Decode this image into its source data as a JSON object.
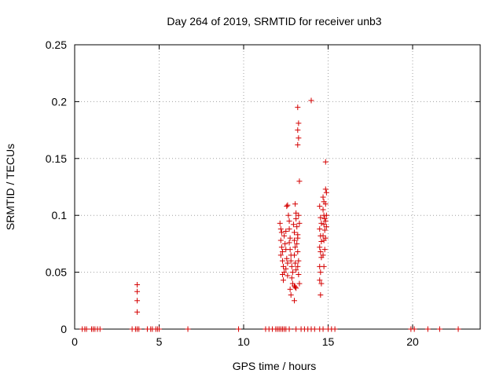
{
  "chart_data": {
    "type": "scatter",
    "title": "Day 264 of 2019, SRMTID for receiver unb3",
    "xlabel": "GPS time / hours",
    "ylabel": "SRMTID / TECUs",
    "xlim": [
      0,
      24
    ],
    "ylim": [
      0,
      0.25
    ],
    "xticks": [
      0,
      5,
      10,
      15,
      20
    ],
    "xtick_labels": [
      "0",
      "5",
      "10",
      "15",
      "20"
    ],
    "yticks": [
      0,
      0.05,
      0.1,
      0.15,
      0.2,
      0.25
    ],
    "ytick_labels": [
      "0",
      "0.05",
      "0.1",
      "0.15",
      "0.2",
      "0.25"
    ],
    "grid": true,
    "marker": "+",
    "color": "#d40000",
    "series": [
      {
        "name": "SRMTID",
        "points": [
          [
            0.45,
            0
          ],
          [
            0.6,
            0
          ],
          [
            0.7,
            0
          ],
          [
            1.0,
            0
          ],
          [
            1.1,
            0
          ],
          [
            1.2,
            0
          ],
          [
            1.35,
            0
          ],
          [
            1.5,
            0
          ],
          [
            3.4,
            0
          ],
          [
            3.6,
            0
          ],
          [
            3.7,
            0
          ],
          [
            3.8,
            0
          ],
          [
            4.3,
            0
          ],
          [
            4.5,
            0
          ],
          [
            4.6,
            0
          ],
          [
            4.8,
            0
          ],
          [
            4.9,
            0
          ],
          [
            5.0,
            0
          ],
          [
            6.7,
            0
          ],
          [
            9.7,
            0
          ],
          [
            11.3,
            0
          ],
          [
            11.5,
            0
          ],
          [
            11.7,
            0
          ],
          [
            11.9,
            0
          ],
          [
            12.0,
            0
          ],
          [
            12.1,
            0
          ],
          [
            12.2,
            0
          ],
          [
            12.3,
            0
          ],
          [
            12.4,
            0
          ],
          [
            12.5,
            0
          ],
          [
            12.7,
            0
          ],
          [
            13.1,
            0
          ],
          [
            13.4,
            0
          ],
          [
            13.6,
            0
          ],
          [
            13.8,
            0
          ],
          [
            14.0,
            0
          ],
          [
            14.2,
            0
          ],
          [
            14.5,
            0
          ],
          [
            14.7,
            0
          ],
          [
            15.0,
            0
          ],
          [
            15.2,
            0
          ],
          [
            15.4,
            0
          ],
          [
            19.9,
            0
          ],
          [
            20.1,
            0
          ],
          [
            20.9,
            0
          ],
          [
            21.6,
            0
          ],
          [
            22.7,
            0
          ],
          [
            3.7,
            0.039
          ],
          [
            3.7,
            0.033
          ],
          [
            3.7,
            0.025
          ],
          [
            3.7,
            0.015
          ],
          [
            12.15,
            0.093
          ],
          [
            12.2,
            0.088
          ],
          [
            12.25,
            0.085
          ],
          [
            12.2,
            0.078
          ],
          [
            12.25,
            0.072
          ],
          [
            12.3,
            0.068
          ],
          [
            12.2,
            0.065
          ],
          [
            12.3,
            0.06
          ],
          [
            12.35,
            0.055
          ],
          [
            12.4,
            0.05
          ],
          [
            12.3,
            0.048
          ],
          [
            12.35,
            0.043
          ],
          [
            12.4,
            0.082
          ],
          [
            12.45,
            0.075
          ],
          [
            12.5,
            0.086
          ],
          [
            12.5,
            0.07
          ],
          [
            12.55,
            0.062
          ],
          [
            12.6,
            0.058
          ],
          [
            12.5,
            0.053
          ],
          [
            12.6,
            0.047
          ],
          [
            12.55,
            0.108
          ],
          [
            12.6,
            0.109
          ],
          [
            12.65,
            0.1
          ],
          [
            12.7,
            0.095
          ],
          [
            12.7,
            0.088
          ],
          [
            12.75,
            0.08
          ],
          [
            12.7,
            0.076
          ],
          [
            12.75,
            0.07
          ],
          [
            12.8,
            0.065
          ],
          [
            12.8,
            0.06
          ],
          [
            12.85,
            0.055
          ],
          [
            12.9,
            0.05
          ],
          [
            12.85,
            0.045
          ],
          [
            12.9,
            0.04
          ],
          [
            12.75,
            0.035
          ],
          [
            12.8,
            0.03
          ],
          [
            12.95,
            0.092
          ],
          [
            13.0,
            0.085
          ],
          [
            13.0,
            0.078
          ],
          [
            13.05,
            0.072
          ],
          [
            13.0,
            0.065
          ],
          [
            13.05,
            0.058
          ],
          [
            13.1,
            0.052
          ],
          [
            13.0,
            0.038
          ],
          [
            13.05,
            0.037
          ],
          [
            13.1,
            0.036
          ],
          [
            13.0,
            0.025
          ],
          [
            13.05,
            0.11
          ],
          [
            13.1,
            0.102
          ],
          [
            13.1,
            0.097
          ],
          [
            13.15,
            0.09
          ],
          [
            13.2,
            0.08
          ],
          [
            13.15,
            0.075
          ],
          [
            13.2,
            0.068
          ],
          [
            13.25,
            0.06
          ],
          [
            13.2,
            0.055
          ],
          [
            13.25,
            0.048
          ],
          [
            13.3,
            0.04
          ],
          [
            13.2,
            0.195
          ],
          [
            13.25,
            0.181
          ],
          [
            13.2,
            0.175
          ],
          [
            13.25,
            0.168
          ],
          [
            13.2,
            0.162
          ],
          [
            13.3,
            0.13
          ],
          [
            13.25,
            0.1
          ],
          [
            13.3,
            0.093
          ],
          [
            13.2,
            0.083
          ],
          [
            14.0,
            0.201
          ],
          [
            14.5,
            0.108
          ],
          [
            14.55,
            0.098
          ],
          [
            14.6,
            0.093
          ],
          [
            14.5,
            0.088
          ],
          [
            14.55,
            0.082
          ],
          [
            14.6,
            0.077
          ],
          [
            14.5,
            0.072
          ],
          [
            14.55,
            0.068
          ],
          [
            14.6,
            0.063
          ],
          [
            14.5,
            0.055
          ],
          [
            14.55,
            0.05
          ],
          [
            14.5,
            0.043
          ],
          [
            14.6,
            0.04
          ],
          [
            14.55,
            0.03
          ],
          [
            14.7,
            0.116
          ],
          [
            14.75,
            0.112
          ],
          [
            14.7,
            0.105
          ],
          [
            14.75,
            0.1
          ],
          [
            14.8,
            0.097
          ],
          [
            14.75,
            0.092
          ],
          [
            14.8,
            0.087
          ],
          [
            14.7,
            0.082
          ],
          [
            14.75,
            0.078
          ],
          [
            14.8,
            0.07
          ],
          [
            14.7,
            0.065
          ],
          [
            14.75,
            0.055
          ],
          [
            14.85,
            0.147
          ],
          [
            14.85,
            0.123
          ],
          [
            14.9,
            0.12
          ],
          [
            14.85,
            0.11
          ],
          [
            14.9,
            0.1
          ],
          [
            14.85,
            0.095
          ],
          [
            14.9,
            0.09
          ],
          [
            14.85,
            0.08
          ]
        ]
      }
    ]
  }
}
